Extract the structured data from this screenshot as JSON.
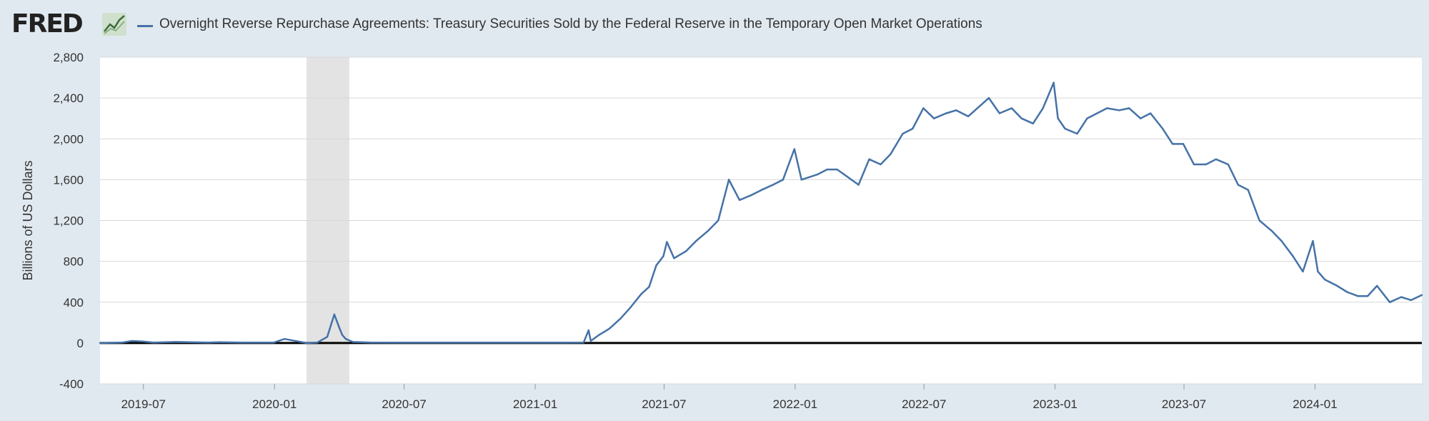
{
  "header": {
    "logo_text": "FRED",
    "legend_label": "Overnight Reverse Repurchase Agreements: Treasury Securities Sold by the Federal Reserve in the Temporary Open Market Operations"
  },
  "colors": {
    "series": "#4572a7",
    "background": "#e1e9f0",
    "plot_background": "#ffffff",
    "recession": "#e3e3e3",
    "zero_line": "#000000",
    "grid": "#d8d8d8"
  },
  "chart_data": {
    "type": "line",
    "title": "Overnight Reverse Repurchase Agreements: Treasury Securities Sold by the Federal Reserve in the Temporary Open Market Operations",
    "xlabel": "",
    "ylabel": "Billions of US Dollars",
    "ylim": [
      -400,
      2800
    ],
    "yticks": [
      -400,
      0,
      400,
      800,
      1200,
      1600,
      2000,
      2400,
      2800
    ],
    "ytick_labels": [
      "-400",
      "0",
      "400",
      "800",
      "1,200",
      "1,600",
      "2,000",
      "2,400",
      "2,800"
    ],
    "xlim": [
      "2019-05-01",
      "2024-05-30"
    ],
    "xticks": [
      "2019-07-01",
      "2020-01-01",
      "2020-07-01",
      "2021-01-01",
      "2021-07-01",
      "2022-01-01",
      "2022-07-01",
      "2023-01-01",
      "2023-07-01",
      "2024-01-01"
    ],
    "xtick_labels": [
      "2019-07",
      "2020-01",
      "2020-07",
      "2021-01",
      "2021-07",
      "2022-01",
      "2022-07",
      "2023-01",
      "2023-07",
      "2024-01"
    ],
    "recession": {
      "start": "2020-02-15",
      "end": "2020-04-15"
    },
    "grid": true,
    "legend_position": "top-left",
    "series": [
      {
        "name": "Overnight Reverse Repurchase Agreements: Treasury Securities Sold by the Federal Reserve in the Temporary Open Market Operations",
        "x": [
          "2019-05-01",
          "2019-06-01",
          "2019-06-15",
          "2019-06-30",
          "2019-07-15",
          "2019-08-15",
          "2019-09-30",
          "2019-10-15",
          "2019-11-15",
          "2019-12-31",
          "2020-01-15",
          "2020-02-15",
          "2020-03-01",
          "2020-03-15",
          "2020-03-25",
          "2020-04-01",
          "2020-04-05",
          "2020-04-10",
          "2020-04-20",
          "2020-05-15",
          "2020-07-01",
          "2020-09-01",
          "2020-11-01",
          "2021-01-01",
          "2021-02-15",
          "2021-03-10",
          "2021-03-17",
          "2021-03-20",
          "2021-04-01",
          "2021-04-15",
          "2021-05-01",
          "2021-05-15",
          "2021-05-30",
          "2021-06-10",
          "2021-06-20",
          "2021-06-30",
          "2021-07-05",
          "2021-07-15",
          "2021-08-01",
          "2021-08-15",
          "2021-09-01",
          "2021-09-15",
          "2021-09-30",
          "2021-10-15",
          "2021-11-01",
          "2021-11-15",
          "2021-12-01",
          "2021-12-15",
          "2021-12-31",
          "2022-01-10",
          "2022-02-01",
          "2022-02-15",
          "2022-03-01",
          "2022-03-31",
          "2022-04-15",
          "2022-05-01",
          "2022-05-15",
          "2022-06-01",
          "2022-06-15",
          "2022-06-30",
          "2022-07-15",
          "2022-08-01",
          "2022-08-15",
          "2022-09-01",
          "2022-09-30",
          "2022-10-15",
          "2022-11-01",
          "2022-11-15",
          "2022-12-01",
          "2022-12-15",
          "2022-12-30",
          "2023-01-05",
          "2023-01-15",
          "2023-02-01",
          "2023-02-15",
          "2023-03-01",
          "2023-03-15",
          "2023-04-01",
          "2023-04-15",
          "2023-05-01",
          "2023-05-15",
          "2023-06-01",
          "2023-06-15",
          "2023-06-30",
          "2023-07-15",
          "2023-08-01",
          "2023-08-15",
          "2023-09-01",
          "2023-09-15",
          "2023-09-29",
          "2023-10-15",
          "2023-11-01",
          "2023-11-15",
          "2023-12-01",
          "2023-12-15",
          "2023-12-29",
          "2024-01-05",
          "2024-01-15",
          "2024-02-01",
          "2024-02-15",
          "2024-03-01",
          "2024-03-15",
          "2024-03-28",
          "2024-04-15",
          "2024-05-01",
          "2024-05-15",
          "2024-05-30"
        ],
        "values": [
          0,
          5,
          20,
          15,
          5,
          10,
          5,
          8,
          5,
          5,
          40,
          0,
          5,
          60,
          280,
          150,
          80,
          40,
          10,
          5,
          3,
          3,
          3,
          3,
          3,
          5,
          125,
          20,
          80,
          140,
          240,
          350,
          480,
          550,
          760,
          850,
          990,
          830,
          900,
          1000,
          1100,
          1200,
          1600,
          1400,
          1450,
          1500,
          1550,
          1600,
          1900,
          1600,
          1650,
          1700,
          1700,
          1550,
          1800,
          1750,
          1850,
          2050,
          2100,
          2300,
          2200,
          2250,
          2280,
          2220,
          2400,
          2250,
          2300,
          2200,
          2150,
          2300,
          2550,
          2200,
          2100,
          2050,
          2200,
          2250,
          2300,
          2280,
          2300,
          2200,
          2250,
          2100,
          1950,
          1950,
          1750,
          1750,
          1800,
          1750,
          1550,
          1500,
          1200,
          1100,
          1000,
          850,
          700,
          1000,
          700,
          620,
          560,
          500,
          460,
          460,
          560,
          400,
          450,
          420,
          470
        ]
      }
    ]
  }
}
